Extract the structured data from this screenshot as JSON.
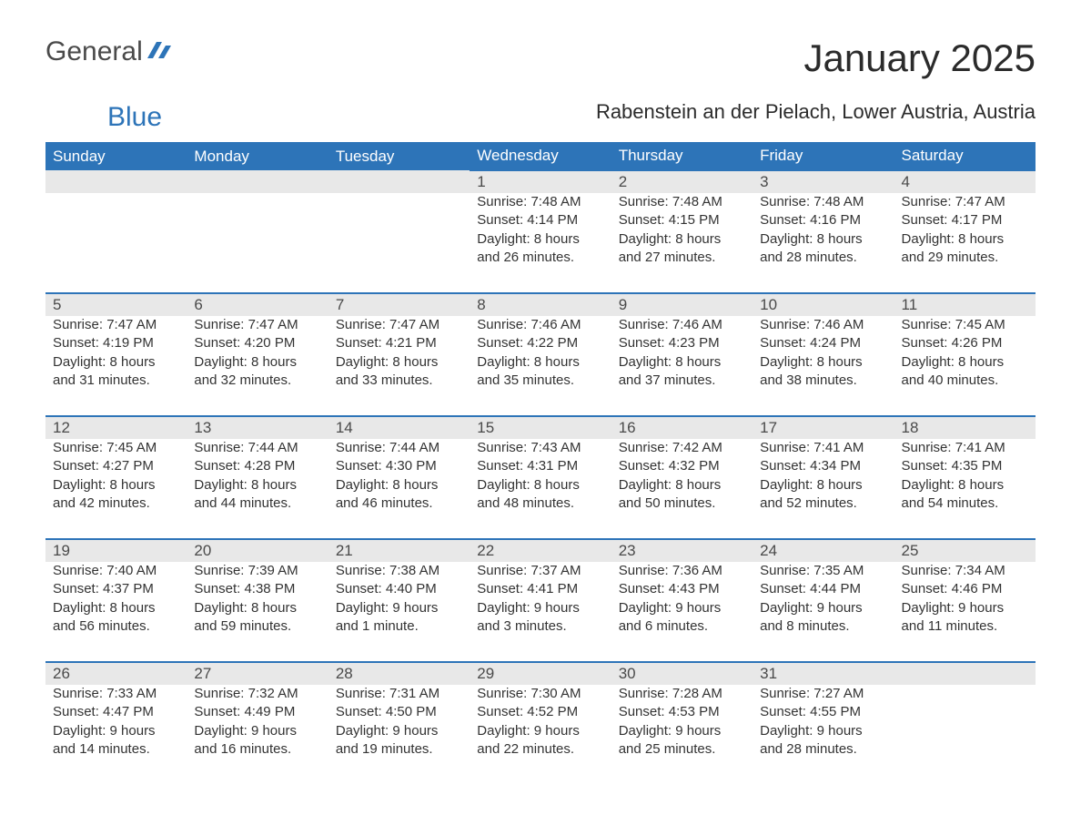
{
  "logo": {
    "text1": "General",
    "text2": "Blue",
    "color1": "#4a4a4a",
    "color2": "#2d74b8"
  },
  "title": "January 2025",
  "location": "Rabenstein an der Pielach, Lower Austria, Austria",
  "colors": {
    "header_bg": "#2d74b8",
    "header_text": "#ffffff",
    "daynum_bg": "#e8e8e8",
    "daynum_border": "#2d74b8",
    "body_text": "#333333",
    "background": "#ffffff"
  },
  "fonts": {
    "title_size": 42,
    "location_size": 22,
    "header_size": 17,
    "body_size": 15
  },
  "day_labels": [
    "Sunday",
    "Monday",
    "Tuesday",
    "Wednesday",
    "Thursday",
    "Friday",
    "Saturday"
  ],
  "field_labels": {
    "sunrise": "Sunrise: ",
    "sunset": "Sunset: ",
    "daylight": "Daylight: "
  },
  "weeks": [
    [
      null,
      null,
      null,
      {
        "day": "1",
        "sunrise": "7:48 AM",
        "sunset": "4:14 PM",
        "daylight": "8 hours and 26 minutes."
      },
      {
        "day": "2",
        "sunrise": "7:48 AM",
        "sunset": "4:15 PM",
        "daylight": "8 hours and 27 minutes."
      },
      {
        "day": "3",
        "sunrise": "7:48 AM",
        "sunset": "4:16 PM",
        "daylight": "8 hours and 28 minutes."
      },
      {
        "day": "4",
        "sunrise": "7:47 AM",
        "sunset": "4:17 PM",
        "daylight": "8 hours and 29 minutes."
      }
    ],
    [
      {
        "day": "5",
        "sunrise": "7:47 AM",
        "sunset": "4:19 PM",
        "daylight": "8 hours and 31 minutes."
      },
      {
        "day": "6",
        "sunrise": "7:47 AM",
        "sunset": "4:20 PM",
        "daylight": "8 hours and 32 minutes."
      },
      {
        "day": "7",
        "sunrise": "7:47 AM",
        "sunset": "4:21 PM",
        "daylight": "8 hours and 33 minutes."
      },
      {
        "day": "8",
        "sunrise": "7:46 AM",
        "sunset": "4:22 PM",
        "daylight": "8 hours and 35 minutes."
      },
      {
        "day": "9",
        "sunrise": "7:46 AM",
        "sunset": "4:23 PM",
        "daylight": "8 hours and 37 minutes."
      },
      {
        "day": "10",
        "sunrise": "7:46 AM",
        "sunset": "4:24 PM",
        "daylight": "8 hours and 38 minutes."
      },
      {
        "day": "11",
        "sunrise": "7:45 AM",
        "sunset": "4:26 PM",
        "daylight": "8 hours and 40 minutes."
      }
    ],
    [
      {
        "day": "12",
        "sunrise": "7:45 AM",
        "sunset": "4:27 PM",
        "daylight": "8 hours and 42 minutes."
      },
      {
        "day": "13",
        "sunrise": "7:44 AM",
        "sunset": "4:28 PM",
        "daylight": "8 hours and 44 minutes."
      },
      {
        "day": "14",
        "sunrise": "7:44 AM",
        "sunset": "4:30 PM",
        "daylight": "8 hours and 46 minutes."
      },
      {
        "day": "15",
        "sunrise": "7:43 AM",
        "sunset": "4:31 PM",
        "daylight": "8 hours and 48 minutes."
      },
      {
        "day": "16",
        "sunrise": "7:42 AM",
        "sunset": "4:32 PM",
        "daylight": "8 hours and 50 minutes."
      },
      {
        "day": "17",
        "sunrise": "7:41 AM",
        "sunset": "4:34 PM",
        "daylight": "8 hours and 52 minutes."
      },
      {
        "day": "18",
        "sunrise": "7:41 AM",
        "sunset": "4:35 PM",
        "daylight": "8 hours and 54 minutes."
      }
    ],
    [
      {
        "day": "19",
        "sunrise": "7:40 AM",
        "sunset": "4:37 PM",
        "daylight": "8 hours and 56 minutes."
      },
      {
        "day": "20",
        "sunrise": "7:39 AM",
        "sunset": "4:38 PM",
        "daylight": "8 hours and 59 minutes."
      },
      {
        "day": "21",
        "sunrise": "7:38 AM",
        "sunset": "4:40 PM",
        "daylight": "9 hours and 1 minute."
      },
      {
        "day": "22",
        "sunrise": "7:37 AM",
        "sunset": "4:41 PM",
        "daylight": "9 hours and 3 minutes."
      },
      {
        "day": "23",
        "sunrise": "7:36 AM",
        "sunset": "4:43 PM",
        "daylight": "9 hours and 6 minutes."
      },
      {
        "day": "24",
        "sunrise": "7:35 AM",
        "sunset": "4:44 PM",
        "daylight": "9 hours and 8 minutes."
      },
      {
        "day": "25",
        "sunrise": "7:34 AM",
        "sunset": "4:46 PM",
        "daylight": "9 hours and 11 minutes."
      }
    ],
    [
      {
        "day": "26",
        "sunrise": "7:33 AM",
        "sunset": "4:47 PM",
        "daylight": "9 hours and 14 minutes."
      },
      {
        "day": "27",
        "sunrise": "7:32 AM",
        "sunset": "4:49 PM",
        "daylight": "9 hours and 16 minutes."
      },
      {
        "day": "28",
        "sunrise": "7:31 AM",
        "sunset": "4:50 PM",
        "daylight": "9 hours and 19 minutes."
      },
      {
        "day": "29",
        "sunrise": "7:30 AM",
        "sunset": "4:52 PM",
        "daylight": "9 hours and 22 minutes."
      },
      {
        "day": "30",
        "sunrise": "7:28 AM",
        "sunset": "4:53 PM",
        "daylight": "9 hours and 25 minutes."
      },
      {
        "day": "31",
        "sunrise": "7:27 AM",
        "sunset": "4:55 PM",
        "daylight": "9 hours and 28 minutes."
      },
      null
    ]
  ]
}
